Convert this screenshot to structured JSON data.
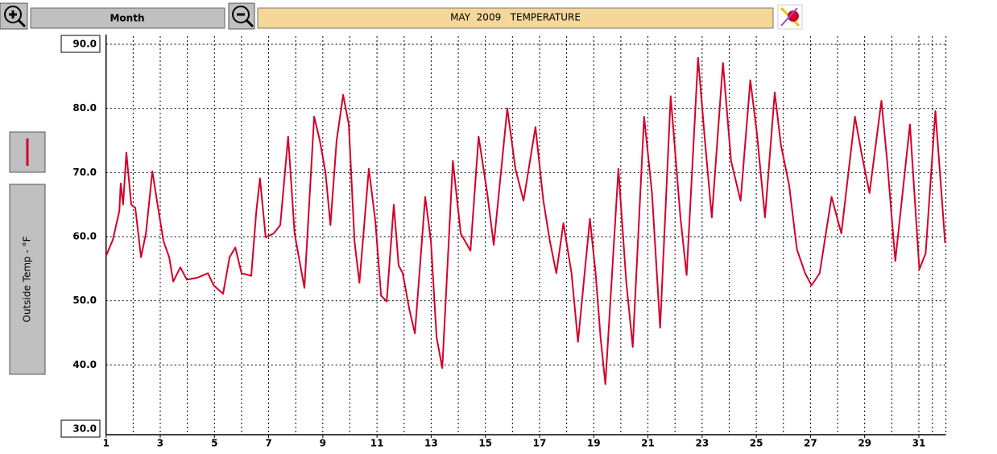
{
  "toolbar": {
    "period": "Month"
  },
  "chart_data": {
    "type": "line",
    "title": "MAY  2009   TEMPERATURE",
    "y_label": "Outside Temp - °F",
    "color": "#d4002a",
    "grid": true,
    "x": [
      1.0,
      1.25,
      1.49,
      1.54,
      1.63,
      1.75,
      1.93,
      2.08,
      2.29,
      2.47,
      2.71,
      2.88,
      3.12,
      3.33,
      3.48,
      3.74,
      3.98,
      4.37,
      4.76,
      4.97,
      5.32,
      5.56,
      5.77,
      6.0,
      6.36,
      6.54,
      6.68,
      6.89,
      7.19,
      7.43,
      7.72,
      7.96,
      8.32,
      8.68,
      8.89,
      9.1,
      9.28,
      9.51,
      9.75,
      9.96,
      10.17,
      10.35,
      10.7,
      10.94,
      11.15,
      11.36,
      11.62,
      11.8,
      11.95,
      12.19,
      12.4,
      12.78,
      12.99,
      13.2,
      13.41,
      13.8,
      14.09,
      14.45,
      14.75,
      15.07,
      15.31,
      15.81,
      16.11,
      16.41,
      16.85,
      17.14,
      17.38,
      17.62,
      17.88,
      18.18,
      18.42,
      18.86,
      19.07,
      19.25,
      19.43,
      19.91,
      20.2,
      20.44,
      20.86,
      21.15,
      21.45,
      21.84,
      22.2,
      22.43,
      22.85,
      23.09,
      23.36,
      23.77,
      24.07,
      24.42,
      24.78,
      25.02,
      25.32,
      25.68,
      25.91,
      26.21,
      26.5,
      26.8,
      27.04,
      27.34,
      27.78,
      28.14,
      28.64,
      28.88,
      29.18,
      29.62,
      29.83,
      30.13,
      30.67,
      31.02,
      31.25,
      31.61,
      31.97
    ],
    "values": [
      57.0,
      59.5,
      64,
      68.3,
      65,
      73.1,
      65,
      64.5,
      56.8,
      60.5,
      70.2,
      65.6,
      59.3,
      56.8,
      53,
      55.2,
      53.3,
      53.6,
      54.3,
      52.4,
      51.1,
      56.8,
      58.3,
      54.3,
      53.9,
      63.7,
      69.1,
      59.9,
      60.5,
      61.8,
      75.6,
      60.5,
      52,
      78.7,
      75,
      70,
      61.8,
      75,
      82.1,
      77.5,
      59.3,
      52.8,
      70.6,
      62.4,
      50.8,
      49.9,
      65,
      55.5,
      54.3,
      48.7,
      44.9,
      66.2,
      59.3,
      44.3,
      39.5,
      71.8,
      60.5,
      57.8,
      75.6,
      66.8,
      58.7,
      80,
      70.6,
      65.6,
      77.1,
      65.6,
      59.3,
      54.3,
      62.1,
      54.3,
      43.6,
      62.8,
      54.3,
      44.3,
      37,
      70.6,
      53,
      42.8,
      78.7,
      66.8,
      45.8,
      81.9,
      63,
      54,
      87.9,
      75.6,
      63,
      87.1,
      71.8,
      65.6,
      84.4,
      76.2,
      63,
      82.5,
      74.3,
      68.1,
      58,
      54.3,
      52.4,
      54.3,
      66.2,
      60.5,
      78.7,
      73.1,
      66.8,
      81.2,
      71.8,
      56.2,
      77.5,
      54.9,
      57.4,
      79.6,
      59
    ],
    "xlim": [
      1,
      32
    ],
    "xticks": [
      1,
      3,
      5,
      7,
      9,
      11,
      13,
      15,
      17,
      19,
      21,
      23,
      25,
      27,
      29,
      31
    ],
    "ylim": [
      30,
      90
    ],
    "yticks": [
      {
        "value": 30,
        "label": "30.0"
      },
      {
        "value": 40,
        "label": "40.0"
      },
      {
        "value": 50,
        "label": "50.0"
      },
      {
        "value": 60,
        "label": "60.0"
      },
      {
        "value": 70,
        "label": "70.0"
      },
      {
        "value": 80,
        "label": "80.0"
      },
      {
        "value": 90,
        "label": "90.0"
      }
    ]
  }
}
